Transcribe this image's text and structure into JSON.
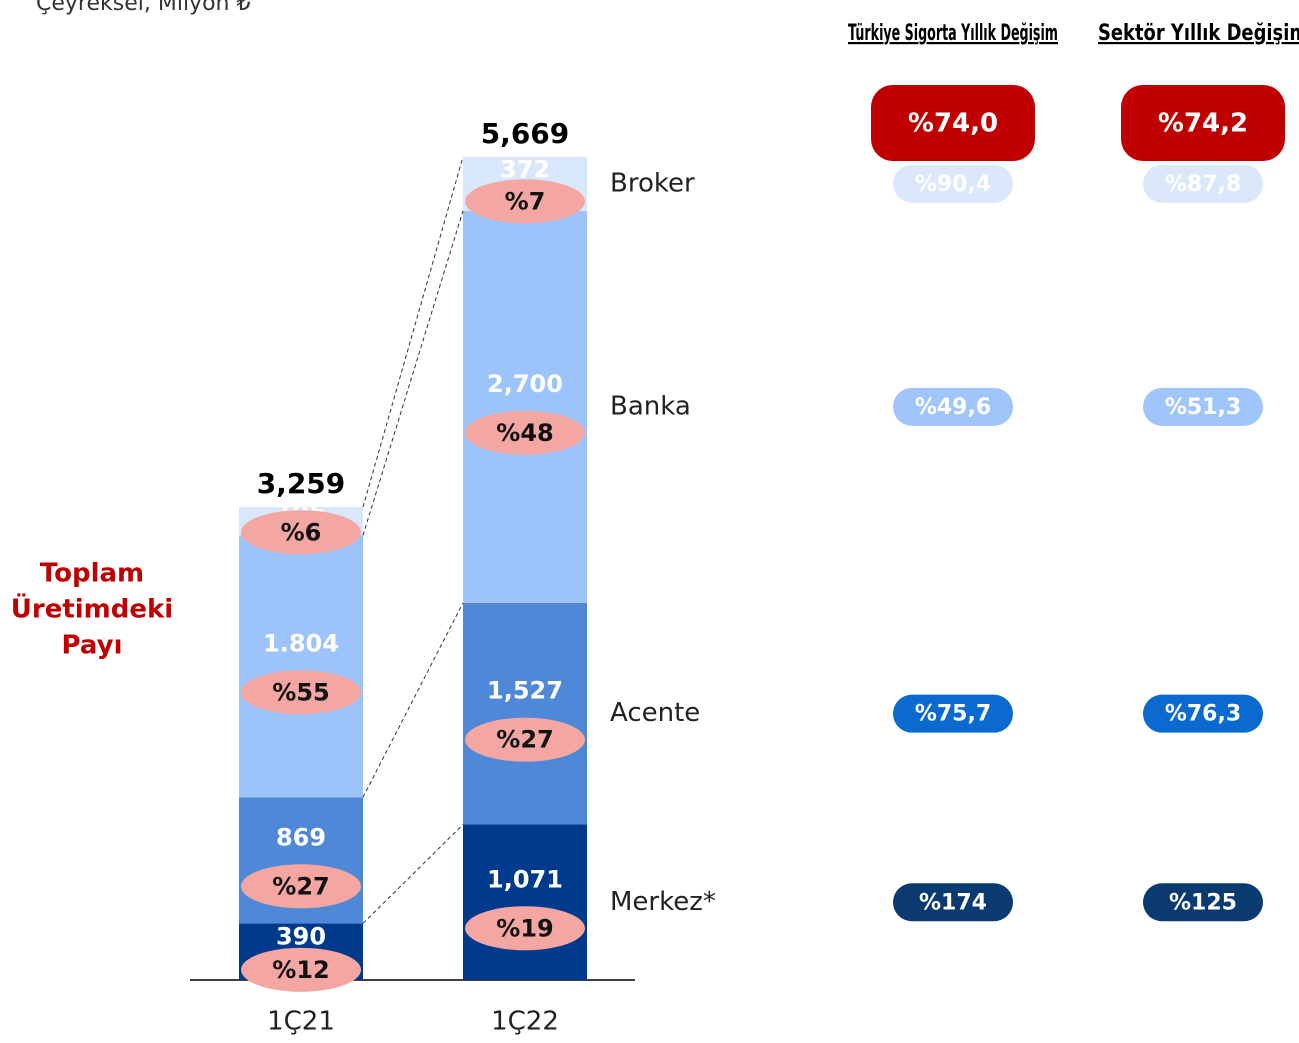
{
  "chart_data": {
    "type": "stacked-bar",
    "subtitle": "Çeyreksel, Milyon ₺",
    "side_label": "Toplam Üretimdeki Payı",
    "categories": [
      "1Ç21",
      "1Ç22"
    ],
    "totals": [
      3259,
      5669
    ],
    "total_labels": [
      "3,259",
      "5,669"
    ],
    "series": [
      {
        "name": "Merkez*",
        "color": "#003a8c",
        "values": [
          390,
          1071
        ],
        "value_labels": [
          "390",
          "1,071"
        ],
        "shares": [
          12,
          19
        ],
        "share_labels": [
          "%12",
          "%19"
        ],
        "yoy_labels": [
          "%174",
          "%125"
        ],
        "pill_color": "#0b3a70"
      },
      {
        "name": "Acente",
        "color": "#4f88d6",
        "values": [
          869,
          1527
        ],
        "value_labels": [
          "869",
          "1,527"
        ],
        "shares": [
          27,
          27
        ],
        "share_labels": [
          "%27",
          "%27"
        ],
        "yoy_labels": [
          "%75,7",
          "%76,3"
        ],
        "pill_color": "#0b6ad0"
      },
      {
        "name": "Banka",
        "color": "#9dc3fb",
        "values": [
          1804,
          2700
        ],
        "value_labels": [
          "1.804",
          "2,700"
        ],
        "shares": [
          55,
          48
        ],
        "share_labels": [
          "%55",
          "%48"
        ],
        "yoy_labels": [
          "%49,6",
          "%51,3"
        ],
        "pill_color": "#9fc5fb"
      },
      {
        "name": "Broker",
        "color": "#d9e7fc",
        "values": [
          195,
          372
        ],
        "value_labels": [
          "195",
          "372"
        ],
        "shares": [
          6,
          7
        ],
        "share_labels": [
          "%6",
          "%7"
        ],
        "yoy_labels": [
          "%90,4",
          "%87,8"
        ],
        "pill_color": "#dbe8fb"
      }
    ],
    "yoy_headers": [
      "Türkiye Sigorta Yıllık Değişim",
      "Sektör Yıllık Değişim"
    ],
    "yoy_total_labels": [
      "%74,0",
      "%74,2"
    ]
  }
}
